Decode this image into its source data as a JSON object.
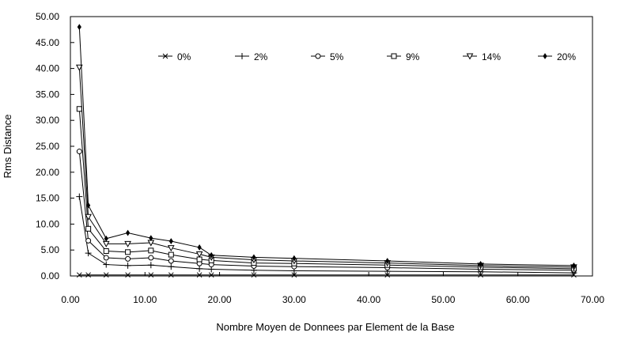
{
  "chart_data": {
    "type": "line",
    "xlabel": "Nombre Moyen de Donnees par Element de la Base",
    "ylabel": "Rms Distance",
    "xlim": [
      0,
      70
    ],
    "ylim": [
      0,
      50
    ],
    "xticks": [
      "0.00",
      "10.00",
      "20.00",
      "30.00",
      "40.00",
      "50.00",
      "60.00",
      "70.00"
    ],
    "yticks": [
      "0.00",
      "5.00",
      "10.00",
      "15.00",
      "20.00",
      "25.00",
      "30.00",
      "35.00",
      "40.00",
      "45.00",
      "50.00"
    ],
    "grid": false,
    "legend_position": "top",
    "x": [
      1.2,
      2.4,
      4.8,
      7.7,
      10.8,
      13.5,
      17.3,
      18.9,
      24.6,
      30.0,
      42.5,
      55.0,
      67.5
    ],
    "series": [
      {
        "name": "0%",
        "marker": "x",
        "values": [
          0.2,
          0.2,
          0.2,
          0.2,
          0.2,
          0.2,
          0.2,
          0.2,
          0.2,
          0.2,
          0.2,
          0.2,
          0.2
        ]
      },
      {
        "name": "2%",
        "marker": "plus",
        "values": [
          15.3,
          4.4,
          2.2,
          2.0,
          2.1,
          1.8,
          1.4,
          1.3,
          1.1,
          1.0,
          0.9,
          0.8,
          0.6
        ]
      },
      {
        "name": "5%",
        "marker": "circle",
        "values": [
          24.0,
          6.8,
          3.5,
          3.3,
          3.5,
          2.9,
          2.4,
          2.2,
          1.9,
          1.8,
          1.6,
          1.3,
          1.1
        ]
      },
      {
        "name": "9%",
        "marker": "square",
        "values": [
          32.2,
          9.1,
          4.8,
          4.6,
          4.9,
          4.1,
          3.2,
          3.0,
          2.5,
          2.4,
          2.1,
          1.7,
          1.4
        ]
      },
      {
        "name": "14%",
        "marker": "triangle",
        "values": [
          40.2,
          11.4,
          6.2,
          6.2,
          6.4,
          5.4,
          4.2,
          3.6,
          3.1,
          2.9,
          2.5,
          2.0,
          1.7
        ]
      },
      {
        "name": "20%",
        "marker": "dot",
        "values": [
          48.0,
          13.6,
          7.2,
          8.3,
          7.3,
          6.7,
          5.5,
          4.0,
          3.6,
          3.4,
          2.9,
          2.3,
          2.0
        ]
      }
    ]
  }
}
